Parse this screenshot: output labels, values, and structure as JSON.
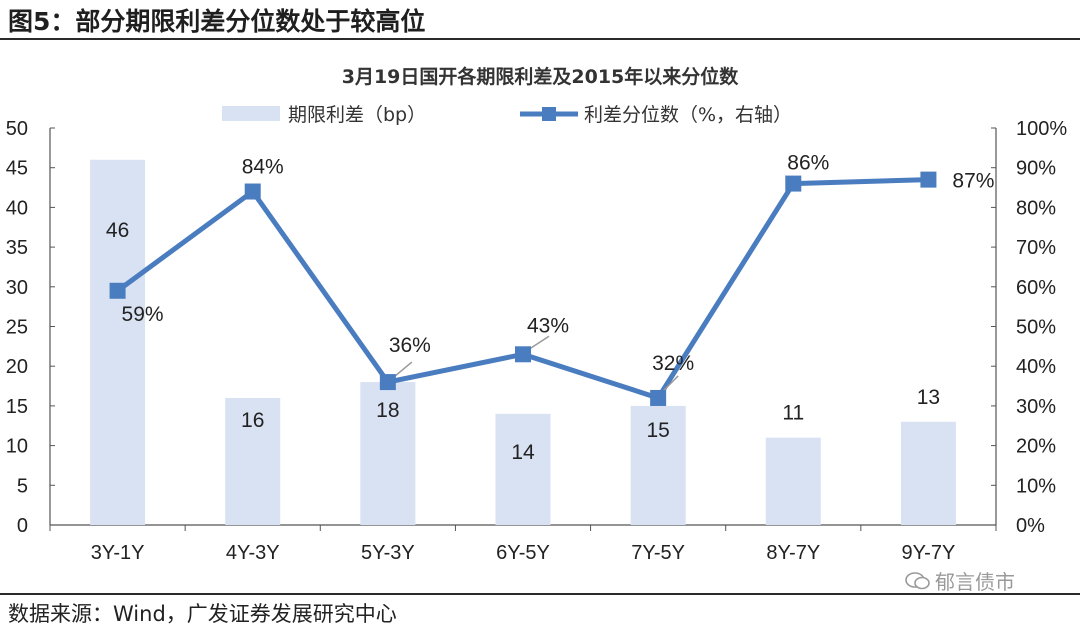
{
  "figure": {
    "title": "图5：部分期限利差分位数处于较高位",
    "source": "数据来源：Wind，广发证券发展研究中心",
    "watermark": "郁言债市"
  },
  "chart_data": {
    "type": "bar",
    "title": "3月19日国开各期限利差及2015年以来分位数",
    "categories": [
      "3Y-1Y",
      "4Y-3Y",
      "5Y-3Y",
      "6Y-5Y",
      "7Y-5Y",
      "8Y-7Y",
      "9Y-7Y"
    ],
    "series": [
      {
        "name": "期限利差（bp）",
        "kind": "bar",
        "axis": "left",
        "values": [
          46,
          16,
          18,
          14,
          15,
          11,
          13
        ],
        "labels": [
          "46",
          "16",
          "18",
          "14",
          "15",
          "11",
          "13"
        ],
        "color": "#d9e2f2"
      },
      {
        "name": "利差分位数（%，右轴）",
        "kind": "line",
        "axis": "right",
        "values": [
          59,
          84,
          36,
          43,
          32,
          86,
          87
        ],
        "labels": [
          "59%",
          "84%",
          "36%",
          "43%",
          "32%",
          "86%",
          "87%"
        ],
        "color": "#4a7cc0"
      }
    ],
    "y_left": {
      "min": 0,
      "max": 50,
      "ticks": [
        "0",
        "5",
        "10",
        "15",
        "20",
        "25",
        "30",
        "35",
        "40",
        "45",
        "50"
      ]
    },
    "y_right": {
      "min": 0,
      "max": 100,
      "ticks": [
        "0%",
        "10%",
        "20%",
        "30%",
        "40%",
        "50%",
        "60%",
        "70%",
        "80%",
        "90%",
        "100%"
      ]
    },
    "legend_position": "top",
    "grid": false
  }
}
